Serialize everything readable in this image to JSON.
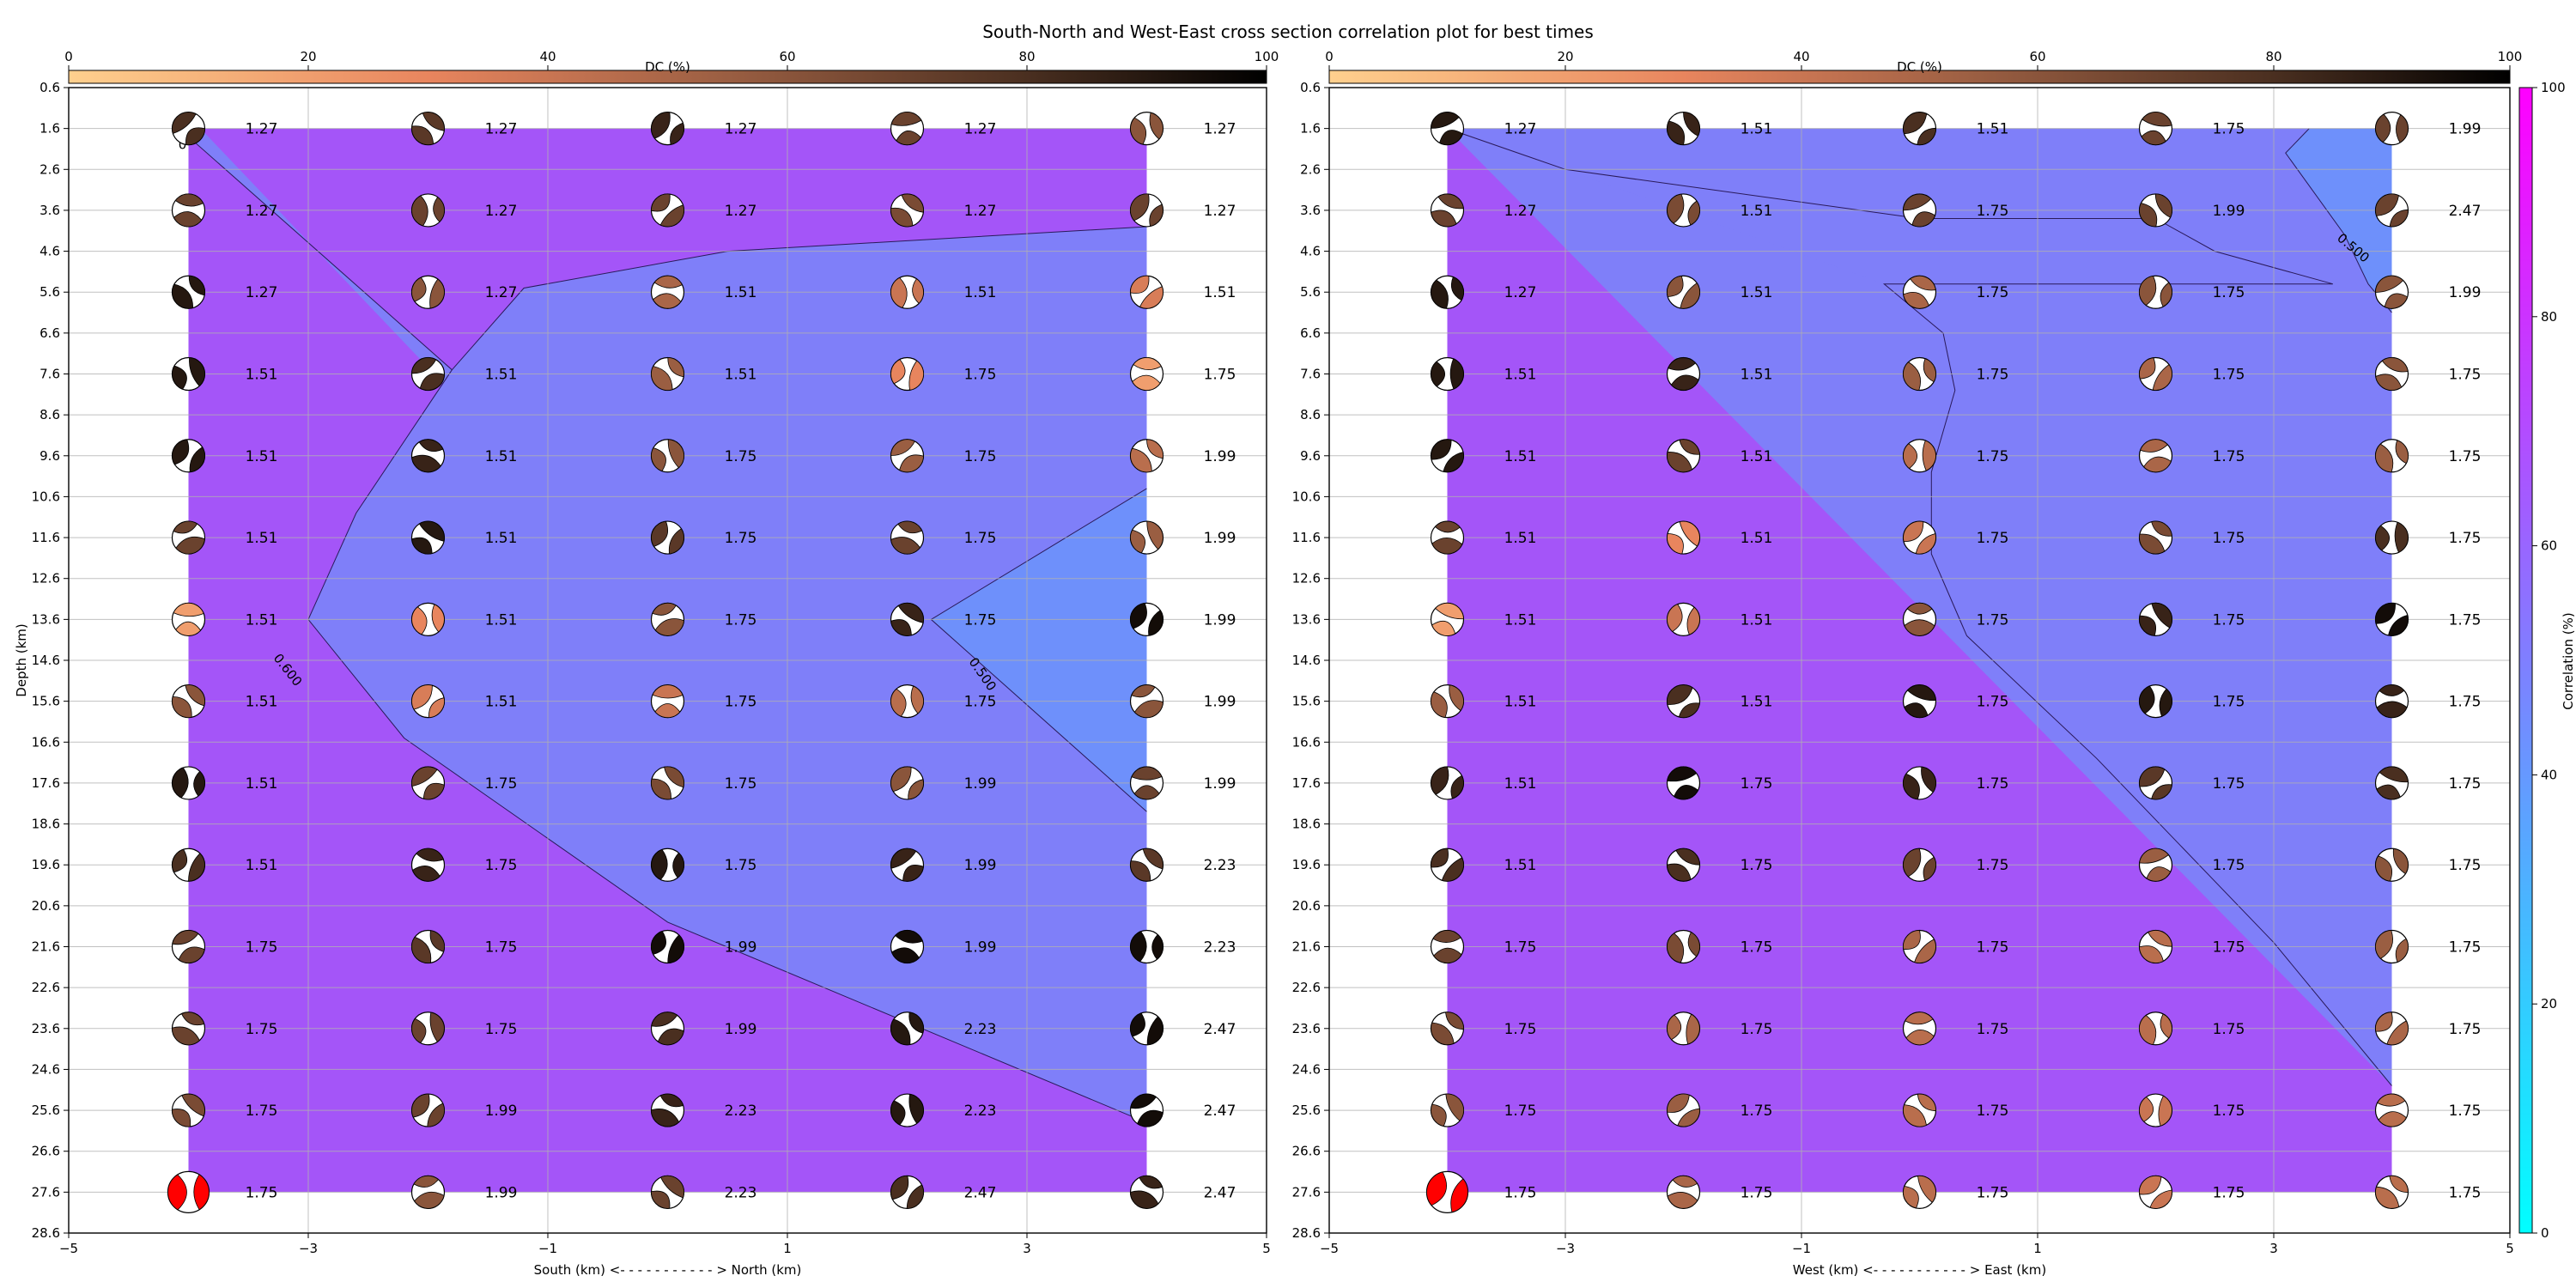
{
  "figure": {
    "title": "South-North and West-East cross section correlation plot for best times"
  },
  "chart_data": [
    {
      "type": "heatmap",
      "panel": "south-north",
      "xlabel": "South (km) <- - - - - - - - - - - > North (km)",
      "ylabel": "Depth (km)",
      "x_ticks": [
        -5,
        -3,
        -1,
        1,
        3,
        5
      ],
      "xlim": [
        -5,
        5
      ],
      "y_ticks": [
        0.6,
        1.6,
        2.6,
        3.6,
        4.6,
        5.6,
        6.6,
        7.6,
        8.6,
        9.6,
        10.6,
        11.6,
        12.6,
        13.6,
        14.6,
        15.6,
        16.6,
        17.6,
        18.6,
        19.6,
        20.6,
        21.6,
        22.6,
        23.6,
        24.6,
        25.6,
        26.6,
        27.6,
        28.6
      ],
      "ylim": [
        28.6,
        0.6
      ],
      "grid": true,
      "colorbar": {
        "label": "DC (%)",
        "ticks": [
          0,
          20,
          40,
          60,
          80,
          100
        ],
        "placement": "top"
      },
      "grid_x": [
        -4,
        -2,
        0,
        2,
        4
      ],
      "grid_depth": [
        1.6,
        3.6,
        5.6,
        7.6,
        9.6,
        11.6,
        13.6,
        15.6,
        17.6,
        19.6,
        21.6,
        23.6,
        25.6,
        27.6
      ],
      "times": [
        [
          "1.27",
          "1.27",
          "1.27",
          "1.27",
          "1.27"
        ],
        [
          "1.27",
          "1.27",
          "1.27",
          "1.27",
          "1.27"
        ],
        [
          "1.27",
          "1.27",
          "1.51",
          "1.51",
          "1.51"
        ],
        [
          "1.51",
          "1.51",
          "1.51",
          "1.75",
          "1.75"
        ],
        [
          "1.51",
          "1.51",
          "1.75",
          "1.75",
          "1.99"
        ],
        [
          "1.51",
          "1.51",
          "1.75",
          "1.75",
          "1.99"
        ],
        [
          "1.51",
          "1.51",
          "1.75",
          "1.75",
          "1.99"
        ],
        [
          "1.51",
          "1.51",
          "1.75",
          "1.75",
          "1.99"
        ],
        [
          "1.51",
          "1.75",
          "1.75",
          "1.99",
          "1.99"
        ],
        [
          "1.51",
          "1.75",
          "1.75",
          "1.99",
          "2.23"
        ],
        [
          "1.75",
          "1.75",
          "1.99",
          "1.99",
          "2.23"
        ],
        [
          "1.75",
          "1.75",
          "1.99",
          "2.23",
          "2.47"
        ],
        [
          "1.75",
          "1.99",
          "2.23",
          "2.23",
          "2.47"
        ],
        [
          "1.75",
          "1.99",
          "2.23",
          "2.47",
          "2.47"
        ]
      ],
      "contours": [
        {
          "label": "0.600",
          "points": [
            [
              -3.9,
              1.6
            ],
            [
              -4.0,
              1.8
            ],
            [
              -1.8,
              7.5
            ],
            [
              -2.6,
              11.0
            ],
            [
              -3.0,
              13.6
            ],
            [
              -2.2,
              16.5
            ],
            [
              0.0,
              21.0
            ],
            [
              4.0,
              25.9
            ]
          ]
        },
        {
          "label": "0.600",
          "points": [
            [
              4.0,
              4.0
            ],
            [
              0.5,
              4.6
            ],
            [
              -1.2,
              5.5
            ],
            [
              -1.8,
              7.5
            ]
          ]
        },
        {
          "label": "0.500",
          "points": [
            [
              4.0,
              10.4
            ],
            [
              2.2,
              13.6
            ],
            [
              4.0,
              18.3
            ]
          ]
        }
      ],
      "contour_labels_visible": [
        "0.600",
        "0.500",
        "0"
      ]
    },
    {
      "type": "heatmap",
      "panel": "west-east",
      "xlabel": "West (km) <- - - - - - - - - - - > East (km)",
      "ylabel": "",
      "x_ticks": [
        -5,
        -3,
        -1,
        1,
        3,
        5
      ],
      "xlim": [
        -5,
        5
      ],
      "y_ticks": [
        0.6,
        1.6,
        2.6,
        3.6,
        4.6,
        5.6,
        6.6,
        7.6,
        8.6,
        9.6,
        10.6,
        11.6,
        12.6,
        13.6,
        14.6,
        15.6,
        16.6,
        17.6,
        18.6,
        19.6,
        20.6,
        21.6,
        22.6,
        23.6,
        24.6,
        25.6,
        26.6,
        27.6,
        28.6
      ],
      "ylim": [
        28.6,
        0.6
      ],
      "grid": true,
      "colorbar": {
        "label": "DC (%)",
        "ticks": [
          0,
          20,
          40,
          60,
          80,
          100
        ],
        "placement": "top"
      },
      "grid_x": [
        -4,
        -2,
        0,
        2,
        4
      ],
      "grid_depth": [
        1.6,
        3.6,
        5.6,
        7.6,
        9.6,
        11.6,
        13.6,
        15.6,
        17.6,
        19.6,
        21.6,
        23.6,
        25.6,
        27.6
      ],
      "times": [
        [
          "1.27",
          "1.51",
          "1.51",
          "1.75",
          "1.99"
        ],
        [
          "1.27",
          "1.51",
          "1.75",
          "1.99",
          "2.47"
        ],
        [
          "1.27",
          "1.51",
          "1.75",
          "1.75",
          "1.99"
        ],
        [
          "1.51",
          "1.51",
          "1.75",
          "1.75",
          "1.75"
        ],
        [
          "1.51",
          "1.51",
          "1.75",
          "1.75",
          "1.75"
        ],
        [
          "1.51",
          "1.51",
          "1.75",
          "1.75",
          "1.75"
        ],
        [
          "1.51",
          "1.51",
          "1.75",
          "1.75",
          "1.75"
        ],
        [
          "1.51",
          "1.51",
          "1.75",
          "1.75",
          "1.75"
        ],
        [
          "1.51",
          "1.75",
          "1.75",
          "1.75",
          "1.75"
        ],
        [
          "1.51",
          "1.75",
          "1.75",
          "1.75",
          "1.75"
        ],
        [
          "1.75",
          "1.75",
          "1.75",
          "1.75",
          "1.75"
        ],
        [
          "1.75",
          "1.75",
          "1.75",
          "1.75",
          "1.75"
        ],
        [
          "1.75",
          "1.75",
          "1.75",
          "1.75",
          "1.75"
        ],
        [
          "1.75",
          "1.75",
          "1.75",
          "1.75",
          "1.75"
        ]
      ],
      "contours": [
        {
          "label": "",
          "points": [
            [
              -4.0,
              1.6
            ],
            [
              -3.0,
              2.6
            ],
            [
              0.0,
              3.8
            ],
            [
              2.0,
              3.8
            ],
            [
              2.5,
              4.6
            ],
            [
              3.5,
              5.4
            ],
            [
              -0.3,
              5.4
            ],
            [
              0.2,
              6.6
            ],
            [
              0.3,
              8.0
            ],
            [
              0.1,
              10.0
            ],
            [
              0.1,
              12.0
            ],
            [
              0.4,
              14.0
            ],
            [
              1.5,
              17.0
            ],
            [
              3.0,
              21.5
            ],
            [
              4.0,
              25.0
            ]
          ]
        },
        {
          "label": "0.500",
          "points": [
            [
              3.3,
              1.6
            ],
            [
              3.1,
              2.2
            ],
            [
              3.6,
              4.2
            ],
            [
              3.8,
              5.4
            ],
            [
              4.0,
              6.1
            ]
          ]
        }
      ],
      "contour_labels_visible": [
        "0.500"
      ]
    }
  ],
  "correlation_colorbar": {
    "label": "Correlation (%)",
    "ticks": [
      0,
      20,
      40,
      60,
      80,
      100
    ]
  },
  "colors": {
    "high_correlation": "#a455f8",
    "mid_correlation": "#7f7ff9",
    "low_correlation": "#6e90fb",
    "dc_low": "#ffd08e",
    "dc_mid": "#e8855e",
    "dc_high": "#000000",
    "beachball_dark": "#5a3a27"
  },
  "beachballs": {
    "sn_dc": [
      [
        80,
        75,
        85,
        70,
        60
      ],
      [
        70,
        70,
        70,
        65,
        70
      ],
      [
        90,
        60,
        50,
        40,
        35
      ],
      [
        90,
        80,
        55,
        30,
        20
      ],
      [
        90,
        85,
        60,
        55,
        45
      ],
      [
        70,
        90,
        75,
        70,
        55
      ],
      [
        20,
        30,
        60,
        85,
        95
      ],
      [
        60,
        35,
        40,
        45,
        60
      ],
      [
        90,
        70,
        65,
        60,
        70
      ],
      [
        80,
        85,
        90,
        85,
        75
      ],
      [
        70,
        75,
        95,
        95,
        95
      ],
      [
        70,
        70,
        80,
        90,
        95
      ],
      [
        65,
        70,
        85,
        90,
        95
      ],
      [
        90,
        60,
        70,
        80,
        85
      ]
    ],
    "we_dc": [
      [
        90,
        85,
        80,
        70,
        70
      ],
      [
        70,
        65,
        70,
        70,
        70
      ],
      [
        90,
        60,
        50,
        60,
        60
      ],
      [
        90,
        85,
        55,
        50,
        60
      ],
      [
        90,
        70,
        45,
        50,
        55
      ],
      [
        70,
        30,
        40,
        65,
        80
      ],
      [
        20,
        40,
        60,
        85,
        95
      ],
      [
        55,
        80,
        90,
        90,
        85
      ],
      [
        85,
        95,
        85,
        75,
        80
      ],
      [
        80,
        80,
        70,
        55,
        60
      ],
      [
        70,
        65,
        50,
        45,
        55
      ],
      [
        65,
        50,
        45,
        45,
        50
      ],
      [
        60,
        55,
        45,
        40,
        45
      ],
      [
        90,
        50,
        45,
        40,
        45
      ]
    ],
    "red_event": {
      "row": 13,
      "col": 0,
      "color": "#ff0000"
    }
  }
}
